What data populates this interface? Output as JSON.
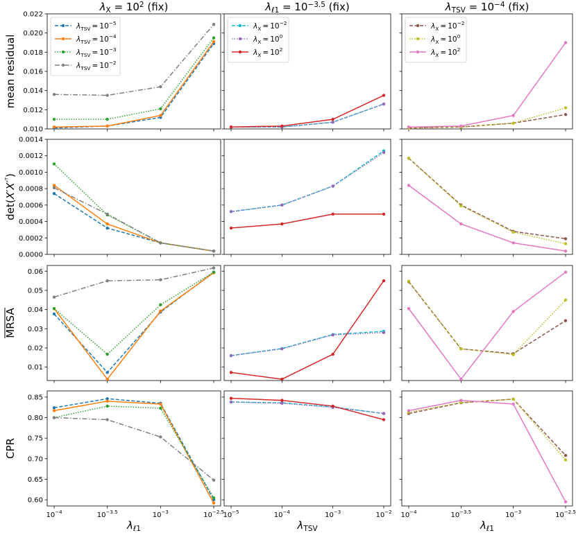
{
  "figure": {
    "col_titles": [
      "λX = 10² (fix)",
      "λℓ₁ = 10⁻³·⁵ (fix)",
      "λTSV = 10⁻⁴ (fix)"
    ],
    "row_labels": [
      "mean residual",
      "det(X'X'ᵀ)",
      "MRSA (overlined)",
      "CPR"
    ],
    "x_labels": [
      "λℓ₁",
      "λTSV",
      "λℓ₁"
    ]
  },
  "chart_data": [
    {
      "type": "line",
      "panel": "r0c0",
      "title": "λX = 10^2 (fix)",
      "ylabel": "mean residual",
      "xlabel": "",
      "x_ticks": [
        "10^-4",
        "10^-3.5",
        "10^-3",
        "10^-2.5"
      ],
      "ylim": [
        0.01,
        0.022
      ],
      "y_ticks": [
        "0.010",
        "0.012",
        "0.014",
        "0.016",
        "0.018",
        "0.020",
        "0.022"
      ],
      "legend": "top-left",
      "series": [
        {
          "name": "λTSV = 10^-5",
          "color": "#1f77b4",
          "style": "dashed",
          "values": [
            0.0101,
            0.0103,
            0.0112,
            0.0189
          ]
        },
        {
          "name": "λTSV = 10^-4",
          "color": "#ff7f0e",
          "style": "solid",
          "values": [
            0.0102,
            0.0103,
            0.0114,
            0.0191
          ]
        },
        {
          "name": "λTSV = 10^-3",
          "color": "#2ca02c",
          "style": "dotted",
          "values": [
            0.011,
            0.011,
            0.0121,
            0.0195
          ]
        },
        {
          "name": "λTSV = 10^-2",
          "color": "#7f7f7f",
          "style": "dashdot",
          "values": [
            0.0136,
            0.0135,
            0.0144,
            0.0209
          ]
        }
      ]
    },
    {
      "type": "line",
      "panel": "r0c1",
      "title": "λℓ1 = 10^-3.5 (fix)",
      "ylabel": "",
      "xlabel": "",
      "x_ticks": [
        "10^-5",
        "10^-4",
        "10^-3",
        "10^-2"
      ],
      "ylim": [
        0.01,
        0.022
      ],
      "y_ticks": [],
      "legend": "top-left",
      "series": [
        {
          "name": "λX = 10^-2",
          "color": "#17becf",
          "style": "dashed",
          "values": [
            0.0102,
            0.0102,
            0.0107,
            0.0126
          ]
        },
        {
          "name": "λX = 10^0",
          "color": "#9467bd",
          "style": "dotted",
          "values": [
            0.0102,
            0.0102,
            0.0107,
            0.0126
          ]
        },
        {
          "name": "λX = 10^2",
          "color": "#d62728",
          "style": "solid",
          "values": [
            0.0102,
            0.0103,
            0.011,
            0.0135
          ]
        }
      ]
    },
    {
      "type": "line",
      "panel": "r0c2",
      "title": "λTSV = 10^-4 (fix)",
      "ylabel": "",
      "xlabel": "",
      "x_ticks": [
        "10^-4",
        "10^-3.5",
        "10^-3",
        "10^-2.5"
      ],
      "ylim": [
        0.01,
        0.022
      ],
      "y_ticks": [],
      "legend": "top-left",
      "series": [
        {
          "name": "λX = 10^-2",
          "color": "#8c564b",
          "style": "dashed",
          "values": [
            0.0101,
            0.0102,
            0.0106,
            0.0115
          ]
        },
        {
          "name": "λX = 10^0",
          "color": "#bcbd22",
          "style": "dotted",
          "values": [
            0.0101,
            0.0102,
            0.0106,
            0.0122
          ]
        },
        {
          "name": "λX = 10^2",
          "color": "#e377c2",
          "style": "solid",
          "values": [
            0.0102,
            0.0103,
            0.0114,
            0.019
          ]
        }
      ]
    },
    {
      "type": "line",
      "panel": "r1c0",
      "title": "",
      "ylabel": "det(X'X'^T)",
      "xlabel": "",
      "x_ticks": [
        "10^-4",
        "10^-3.5",
        "10^-3",
        "10^-2.5"
      ],
      "ylim": [
        0.0,
        0.0014
      ],
      "y_ticks": [
        "0.0000",
        "0.0002",
        "0.0004",
        "0.0006",
        "0.0008",
        "0.0010",
        "0.0012",
        "0.0014"
      ],
      "series": [
        {
          "name": "λTSV = 10^-5",
          "color": "#1f77b4",
          "style": "dashed",
          "values": [
            0.00074,
            0.00032,
            0.00014,
            4e-05
          ]
        },
        {
          "name": "λTSV = 10^-4",
          "color": "#ff7f0e",
          "style": "solid",
          "values": [
            0.00084,
            0.00037,
            0.00014,
            4e-05
          ]
        },
        {
          "name": "λTSV = 10^-3",
          "color": "#2ca02c",
          "style": "dotted",
          "values": [
            0.0011,
            0.00048,
            0.00014,
            4e-05
          ]
        },
        {
          "name": "λTSV = 10^-2",
          "color": "#7f7f7f",
          "style": "dashdot",
          "values": [
            0.00081,
            0.00049,
            0.00014,
            4e-05
          ]
        }
      ]
    },
    {
      "type": "line",
      "panel": "r1c1",
      "title": "",
      "ylabel": "",
      "xlabel": "",
      "x_ticks": [
        "10^-5",
        "10^-4",
        "10^-3",
        "10^-2"
      ],
      "ylim": [
        0.0,
        0.0014
      ],
      "y_ticks": [],
      "series": [
        {
          "name": "λX = 10^-2",
          "color": "#17becf",
          "style": "dashed",
          "values": [
            0.00052,
            0.0006,
            0.00083,
            0.00126
          ]
        },
        {
          "name": "λX = 10^0",
          "color": "#9467bd",
          "style": "dotted",
          "values": [
            0.00052,
            0.0006,
            0.00083,
            0.00124
          ]
        },
        {
          "name": "λX = 10^2",
          "color": "#d62728",
          "style": "solid",
          "values": [
            0.00032,
            0.00037,
            0.00049,
            0.00049
          ]
        }
      ]
    },
    {
      "type": "line",
      "panel": "r1c2",
      "title": "",
      "ylabel": "",
      "xlabel": "",
      "x_ticks": [
        "10^-4",
        "10^-3.5",
        "10^-3",
        "10^-2.5"
      ],
      "ylim": [
        0.0,
        0.0014
      ],
      "y_ticks": [],
      "series": [
        {
          "name": "λX = 10^-2",
          "color": "#8c564b",
          "style": "dashed",
          "values": [
            0.00117,
            0.0006,
            0.00028,
            0.00019
          ]
        },
        {
          "name": "λX = 10^0",
          "color": "#bcbd22",
          "style": "dotted",
          "values": [
            0.00117,
            0.00059,
            0.00027,
            0.00013
          ]
        },
        {
          "name": "λX = 10^2",
          "color": "#e377c2",
          "style": "solid",
          "values": [
            0.00084,
            0.00037,
            0.00014,
            4e-05
          ]
        }
      ]
    },
    {
      "type": "line",
      "panel": "r2c0",
      "title": "",
      "ylabel": "MRSA",
      "xlabel": "",
      "x_ticks": [
        "10^-4",
        "10^-3.5",
        "10^-3",
        "10^-2.5"
      ],
      "ylim": [
        0.003,
        0.063
      ],
      "y_ticks": [
        "0.01",
        "0.02",
        "0.03",
        "0.04",
        "0.05",
        "0.06"
      ],
      "series": [
        {
          "name": "λTSV = 10^-5",
          "color": "#1f77b4",
          "style": "dashed",
          "values": [
            0.0377,
            0.0072,
            0.0387,
            0.0595
          ]
        },
        {
          "name": "λTSV = 10^-4",
          "color": "#ff7f0e",
          "style": "solid",
          "values": [
            0.0405,
            0.0037,
            0.0392,
            0.0592
          ]
        },
        {
          "name": "λTSV = 10^-3",
          "color": "#2ca02c",
          "style": "dotted",
          "values": [
            0.0405,
            0.0167,
            0.0425,
            0.0595
          ]
        },
        {
          "name": "λTSV = 10^-2",
          "color": "#7f7f7f",
          "style": "dashdot",
          "values": [
            0.0465,
            0.055,
            0.0555,
            0.0617
          ]
        }
      ]
    },
    {
      "type": "line",
      "panel": "r2c1",
      "title": "",
      "ylabel": "",
      "xlabel": "",
      "x_ticks": [
        "10^-5",
        "10^-4",
        "10^-3",
        "10^-2"
      ],
      "ylim": [
        0.003,
        0.063
      ],
      "y_ticks": [],
      "series": [
        {
          "name": "λX = 10^-2",
          "color": "#17becf",
          "style": "dashed",
          "values": [
            0.016,
            0.0197,
            0.027,
            0.0287
          ]
        },
        {
          "name": "λX = 10^0",
          "color": "#9467bd",
          "style": "dotted",
          "values": [
            0.016,
            0.0195,
            0.0268,
            0.028
          ]
        },
        {
          "name": "λX = 10^2",
          "color": "#d62728",
          "style": "solid",
          "values": [
            0.0072,
            0.0037,
            0.0167,
            0.055
          ]
        }
      ]
    },
    {
      "type": "line",
      "panel": "r2c2",
      "title": "",
      "ylabel": "",
      "xlabel": "",
      "x_ticks": [
        "10^-4",
        "10^-3.5",
        "10^-3",
        "10^-2.5"
      ],
      "ylim": [
        0.003,
        0.063
      ],
      "y_ticks": [],
      "series": [
        {
          "name": "λX = 10^-2",
          "color": "#8c564b",
          "style": "dashed",
          "values": [
            0.0545,
            0.0195,
            0.017,
            0.0342
          ]
        },
        {
          "name": "λX = 10^0",
          "color": "#bcbd22",
          "style": "dotted",
          "values": [
            0.0548,
            0.0195,
            0.0165,
            0.045
          ]
        },
        {
          "name": "λX = 10^2",
          "color": "#e377c2",
          "style": "solid",
          "values": [
            0.0405,
            0.0037,
            0.039,
            0.0595
          ]
        }
      ]
    },
    {
      "type": "line",
      "panel": "r3c0",
      "title": "",
      "ylabel": "CPR",
      "xlabel": "λℓ1",
      "x_ticks": [
        "10^-4",
        "10^-3.5",
        "10^-3",
        "10^-2.5"
      ],
      "ylim": [
        0.585,
        0.865
      ],
      "y_ticks": [
        "0.60",
        "0.65",
        "0.70",
        "0.75",
        "0.80",
        "0.85"
      ],
      "series": [
        {
          "name": "λTSV = 10^-5",
          "color": "#1f77b4",
          "style": "dashed",
          "values": [
            0.824,
            0.846,
            0.835,
            0.6
          ]
        },
        {
          "name": "λTSV = 10^-4",
          "color": "#ff7f0e",
          "style": "solid",
          "values": [
            0.817,
            0.84,
            0.833,
            0.592
          ]
        },
        {
          "name": "λTSV = 10^-3",
          "color": "#2ca02c",
          "style": "dotted",
          "values": [
            0.8,
            0.828,
            0.823,
            0.605
          ]
        },
        {
          "name": "λTSV = 10^-2",
          "color": "#7f7f7f",
          "style": "dashdot",
          "values": [
            0.8,
            0.795,
            0.753,
            0.648
          ]
        }
      ]
    },
    {
      "type": "line",
      "panel": "r3c1",
      "title": "",
      "ylabel": "",
      "xlabel": "λTSV",
      "x_ticks": [
        "10^-5",
        "10^-4",
        "10^-3",
        "10^-2"
      ],
      "ylim": [
        0.585,
        0.865
      ],
      "y_ticks": [],
      "series": [
        {
          "name": "λX = 10^-2",
          "color": "#17becf",
          "style": "dashed",
          "values": [
            0.838,
            0.836,
            0.826,
            0.81
          ]
        },
        {
          "name": "λX = 10^0",
          "color": "#9467bd",
          "style": "dotted",
          "values": [
            0.838,
            0.835,
            0.825,
            0.81
          ]
        },
        {
          "name": "λX = 10^2",
          "color": "#d62728",
          "style": "solid",
          "values": [
            0.847,
            0.842,
            0.828,
            0.795
          ]
        }
      ]
    },
    {
      "type": "line",
      "panel": "r3c2",
      "title": "",
      "ylabel": "",
      "xlabel": "λℓ1",
      "x_ticks": [
        "10^-4",
        "10^-3.5",
        "10^-3",
        "10^-2.5"
      ],
      "ylim": [
        0.585,
        0.865
      ],
      "y_ticks": [],
      "series": [
        {
          "name": "λX = 10^-2",
          "color": "#8c564b",
          "style": "dashed",
          "values": [
            0.81,
            0.836,
            0.845,
            0.708
          ]
        },
        {
          "name": "λX = 10^0",
          "color": "#bcbd22",
          "style": "dotted",
          "values": [
            0.813,
            0.837,
            0.845,
            0.697
          ]
        },
        {
          "name": "λX = 10^2",
          "color": "#e377c2",
          "style": "solid",
          "values": [
            0.817,
            0.842,
            0.833,
            0.595
          ]
        }
      ]
    }
  ]
}
